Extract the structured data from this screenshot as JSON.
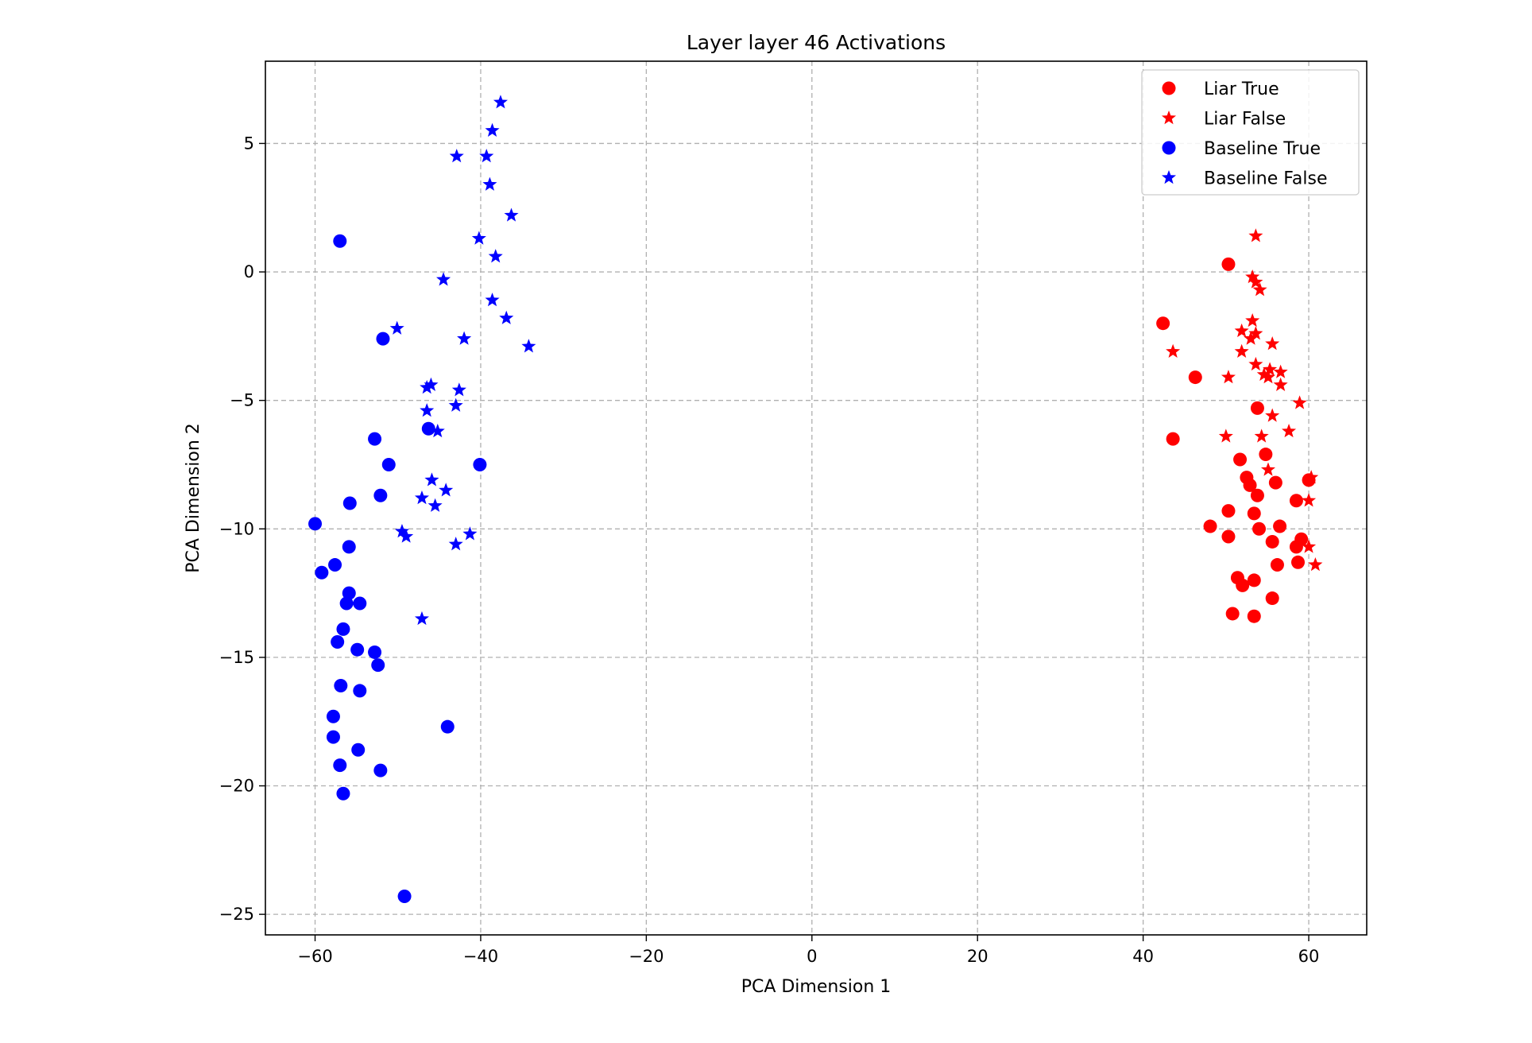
{
  "chart_data": {
    "type": "scatter",
    "title": "Layer layer 46 Activations",
    "xlabel": "PCA Dimension 1",
    "ylabel": "PCA Dimension 2",
    "xlim": [
      -66,
      67
    ],
    "ylim": [
      -25.8,
      8.2
    ],
    "xticks": [
      -60,
      -40,
      -20,
      0,
      20,
      40,
      60
    ],
    "yticks": [
      5,
      0,
      -5,
      -10,
      -15,
      -20,
      -25
    ],
    "grid": true,
    "legend_position": "top-right",
    "series": [
      {
        "name": "Liar True",
        "marker": "circle",
        "color": "#ff0000",
        "points": [
          [
            50.3,
            0.3
          ],
          [
            42.4,
            -2.0
          ],
          [
            46.3,
            -4.1
          ],
          [
            53.8,
            -5.3
          ],
          [
            43.6,
            -6.5
          ],
          [
            54.8,
            -7.1
          ],
          [
            51.7,
            -7.3
          ],
          [
            52.5,
            -8.0
          ],
          [
            52.9,
            -8.3
          ],
          [
            56.0,
            -8.2
          ],
          [
            60.0,
            -8.1
          ],
          [
            53.8,
            -8.7
          ],
          [
            58.5,
            -8.9
          ],
          [
            50.3,
            -9.3
          ],
          [
            53.4,
            -9.4
          ],
          [
            48.1,
            -9.9
          ],
          [
            56.5,
            -9.9
          ],
          [
            54.0,
            -10.0
          ],
          [
            50.3,
            -10.3
          ],
          [
            55.6,
            -10.5
          ],
          [
            59.1,
            -10.4
          ],
          [
            58.5,
            -10.7
          ],
          [
            56.2,
            -11.4
          ],
          [
            58.7,
            -11.3
          ],
          [
            51.4,
            -11.9
          ],
          [
            53.4,
            -12.0
          ],
          [
            52.0,
            -12.2
          ],
          [
            55.6,
            -12.7
          ],
          [
            50.8,
            -13.3
          ],
          [
            53.4,
            -13.4
          ]
        ]
      },
      {
        "name": "Liar False",
        "marker": "star",
        "color": "#ff0000",
        "points": [
          [
            53.6,
            1.4
          ],
          [
            53.2,
            -0.2
          ],
          [
            53.6,
            -0.4
          ],
          [
            54.1,
            -0.7
          ],
          [
            53.2,
            -1.9
          ],
          [
            51.9,
            -2.3
          ],
          [
            53.6,
            -2.4
          ],
          [
            53.0,
            -2.6
          ],
          [
            55.6,
            -2.8
          ],
          [
            43.6,
            -3.1
          ],
          [
            51.9,
            -3.1
          ],
          [
            53.6,
            -3.6
          ],
          [
            55.3,
            -3.8
          ],
          [
            56.6,
            -3.9
          ],
          [
            54.6,
            -4.0
          ],
          [
            55.1,
            -4.1
          ],
          [
            50.3,
            -4.1
          ],
          [
            56.6,
            -4.4
          ],
          [
            58.9,
            -5.1
          ],
          [
            55.6,
            -5.6
          ],
          [
            57.6,
            -6.2
          ],
          [
            50.0,
            -6.4
          ],
          [
            54.3,
            -6.4
          ],
          [
            55.1,
            -7.7
          ],
          [
            60.3,
            -8.0
          ],
          [
            60.0,
            -8.9
          ],
          [
            60.0,
            -10.7
          ],
          [
            60.8,
            -11.4
          ]
        ]
      },
      {
        "name": "Baseline True",
        "marker": "circle",
        "color": "#0000ff",
        "points": [
          [
            -57.0,
            1.2
          ],
          [
            -51.8,
            -2.6
          ],
          [
            -46.3,
            -6.1
          ],
          [
            -52.8,
            -6.5
          ],
          [
            -51.1,
            -7.5
          ],
          [
            -40.1,
            -7.5
          ],
          [
            -52.1,
            -8.7
          ],
          [
            -55.8,
            -9.0
          ],
          [
            -60.0,
            -9.8
          ],
          [
            -55.9,
            -10.7
          ],
          [
            -59.2,
            -11.7
          ],
          [
            -57.6,
            -11.4
          ],
          [
            -55.9,
            -12.5
          ],
          [
            -56.2,
            -12.9
          ],
          [
            -54.6,
            -12.9
          ],
          [
            -56.6,
            -13.9
          ],
          [
            -57.3,
            -14.4
          ],
          [
            -54.9,
            -14.7
          ],
          [
            -52.8,
            -14.8
          ],
          [
            -52.4,
            -15.3
          ],
          [
            -56.9,
            -16.1
          ],
          [
            -54.6,
            -16.3
          ],
          [
            -57.8,
            -17.3
          ],
          [
            -44.0,
            -17.7
          ],
          [
            -57.8,
            -18.1
          ],
          [
            -54.8,
            -18.6
          ],
          [
            -57.0,
            -19.2
          ],
          [
            -52.1,
            -19.4
          ],
          [
            -56.6,
            -20.3
          ],
          [
            -49.2,
            -24.3
          ]
        ]
      },
      {
        "name": "Baseline False",
        "marker": "star",
        "color": "#0000ff",
        "points": [
          [
            -37.6,
            6.6
          ],
          [
            -38.6,
            5.5
          ],
          [
            -42.9,
            4.5
          ],
          [
            -39.3,
            4.5
          ],
          [
            -38.9,
            3.4
          ],
          [
            -36.3,
            2.2
          ],
          [
            -40.2,
            1.3
          ],
          [
            -38.2,
            0.6
          ],
          [
            -44.5,
            -0.3
          ],
          [
            -38.6,
            -1.1
          ],
          [
            -36.9,
            -1.8
          ],
          [
            -50.1,
            -2.2
          ],
          [
            -42.0,
            -2.6
          ],
          [
            -34.2,
            -2.9
          ],
          [
            -46.0,
            -4.4
          ],
          [
            -46.5,
            -4.5
          ],
          [
            -42.6,
            -4.6
          ],
          [
            -43.0,
            -5.2
          ],
          [
            -46.5,
            -5.4
          ],
          [
            -45.2,
            -6.2
          ],
          [
            -45.9,
            -8.1
          ],
          [
            -44.2,
            -8.5
          ],
          [
            -47.1,
            -8.8
          ],
          [
            -45.5,
            -9.1
          ],
          [
            -49.5,
            -10.1
          ],
          [
            -49.0,
            -10.3
          ],
          [
            -41.3,
            -10.2
          ],
          [
            -43.0,
            -10.6
          ],
          [
            -47.1,
            -13.5
          ]
        ]
      }
    ]
  }
}
